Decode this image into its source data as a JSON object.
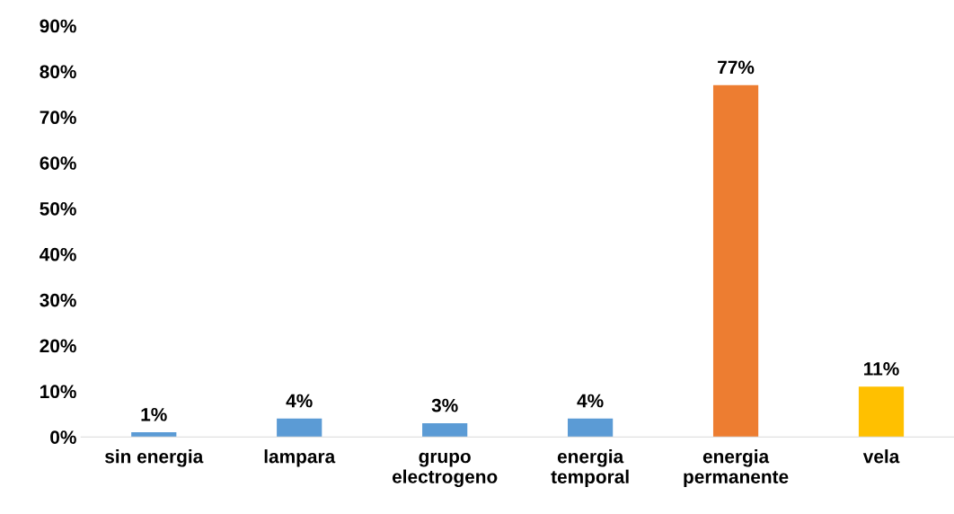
{
  "chart_data": {
    "type": "bar",
    "categories": [
      "sin energia",
      "lampara",
      "grupo\nelectrogeno",
      "energia\ntemporal",
      "energia\npermanente",
      "vela"
    ],
    "values": [
      1,
      4,
      3,
      4,
      77,
      11
    ],
    "colors": [
      "#5b9bd5",
      "#5b9bd5",
      "#5b9bd5",
      "#5b9bd5",
      "#ed7d31",
      "#ffc000"
    ],
    "value_labels": [
      "1%",
      "4%",
      "3%",
      "4%",
      "77%",
      "11%"
    ],
    "ylim": [
      0,
      90
    ],
    "yticks": [
      {
        "value": 0,
        "label": "0%"
      },
      {
        "value": 10,
        "label": "10%"
      },
      {
        "value": 20,
        "label": "20%"
      },
      {
        "value": 30,
        "label": "30%"
      },
      {
        "value": 40,
        "label": "40%"
      },
      {
        "value": 50,
        "label": "50%"
      },
      {
        "value": 60,
        "label": "60%"
      },
      {
        "value": 70,
        "label": "70%"
      },
      {
        "value": 80,
        "label": "80%"
      },
      {
        "value": 90,
        "label": "90%"
      }
    ],
    "grid": false,
    "legend": false
  }
}
